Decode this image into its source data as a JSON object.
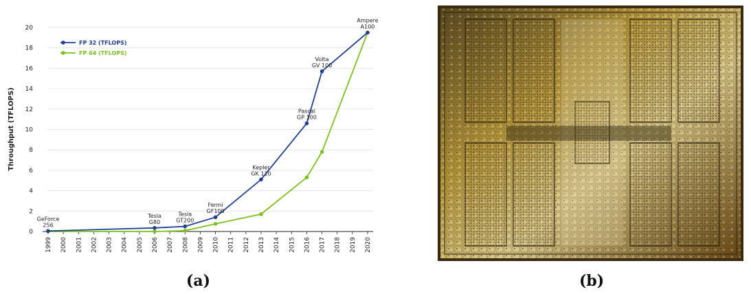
{
  "panel_labels": {
    "left": "(a)",
    "right": "(b)"
  },
  "colors": {
    "fp32": "#1f3f8f",
    "fp64": "#7cc11f",
    "axis": "#222222",
    "grid": "#e6e6e6"
  },
  "die_image_icon": "gpu-die-photo",
  "chart_data": {
    "type": "line",
    "title": "",
    "xlabel": "",
    "ylabel": "Throughput (TFLOPS)",
    "ylim": [
      0,
      20
    ],
    "yticks": [
      "0",
      "2",
      "4",
      "6",
      "8",
      "10",
      "12",
      "14",
      "16",
      "18",
      "20"
    ],
    "categories": [
      "1999",
      "2000",
      "2001",
      "2002",
      "2003",
      "2004",
      "2005",
      "2006",
      "2007",
      "2008",
      "2009",
      "2010",
      "2011",
      "2012",
      "2013",
      "2014",
      "2015",
      "2016",
      "2017",
      "2018",
      "2019",
      "2020"
    ],
    "grid": true,
    "legend_position": "top-left",
    "series": [
      {
        "name": "FP 32 (TFLOPS)",
        "color": "#1f3f8f",
        "points": [
          {
            "x": "1999",
            "y": 0.05
          },
          {
            "x": "2006",
            "y": 0.35
          },
          {
            "x": "2008",
            "y": 0.5
          },
          {
            "x": "2010",
            "y": 1.4
          },
          {
            "x": "2013",
            "y": 5.1
          },
          {
            "x": "2016",
            "y": 10.6
          },
          {
            "x": "2017",
            "y": 15.7
          },
          {
            "x": "2020",
            "y": 19.5
          }
        ]
      },
      {
        "name": "FP 64 (TFLOPS)",
        "color": "#7cc11f",
        "points": [
          {
            "x": "1999",
            "y": 0.0
          },
          {
            "x": "2006",
            "y": 0.0
          },
          {
            "x": "2008",
            "y": 0.08
          },
          {
            "x": "2010",
            "y": 0.75
          },
          {
            "x": "2013",
            "y": 1.7
          },
          {
            "x": "2016",
            "y": 5.3
          },
          {
            "x": "2017",
            "y": 7.8
          },
          {
            "x": "2020",
            "y": 19.5
          }
        ]
      }
    ],
    "annotations": [
      {
        "x": "1999",
        "y": 0.05,
        "lines": [
          "GeForce",
          "256"
        ]
      },
      {
        "x": "2006",
        "y": 0.35,
        "lines": [
          "Tesla",
          "G80"
        ]
      },
      {
        "x": "2008",
        "y": 0.5,
        "lines": [
          "Tesla",
          "GT200"
        ]
      },
      {
        "x": "2010",
        "y": 1.4,
        "lines": [
          "Fermi",
          "GF100"
        ]
      },
      {
        "x": "2013",
        "y": 5.1,
        "lines": [
          "Kepler",
          "GK 110"
        ]
      },
      {
        "x": "2016",
        "y": 10.6,
        "lines": [
          "Pascal",
          "GP 100"
        ]
      },
      {
        "x": "2017",
        "y": 15.7,
        "lines": [
          "Volta",
          "GV 100"
        ]
      },
      {
        "x": "2020",
        "y": 19.5,
        "lines": [
          "Ampere",
          "A100"
        ]
      }
    ]
  }
}
